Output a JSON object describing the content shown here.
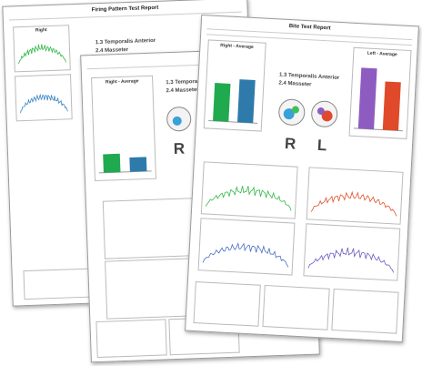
{
  "pages": [
    {
      "title": "Firing Pattern Test Report",
      "panel": "Right",
      "muscles": [
        "1.3 Temporalis Anterior",
        "2.4 Masseter"
      ]
    },
    {
      "chart": {
        "title": "Right - Average",
        "values": [
          22,
          17
        ],
        "colors": [
          "#1faa4f",
          "#2e7bab"
        ],
        "ylim": [
          0,
          100
        ]
      },
      "muscles": [
        "1.3 Temporalis Anterior",
        "2.4 Masseter"
      ],
      "side": "R"
    },
    {
      "title": "Bite Test Report",
      "right_chart": {
        "title": "Right - Average",
        "values": [
          55,
          62
        ],
        "colors": [
          "#1faa4f",
          "#2e7bab"
        ],
        "ylim": [
          0,
          100
        ]
      },
      "left_chart": {
        "title": "Left - Average",
        "values": [
          88,
          70
        ],
        "colors": [
          "#8e5cc0",
          "#e04a2a"
        ],
        "ylim": [
          0,
          100
        ]
      },
      "muscles": [
        "1.3 Temporalis Anterior",
        "2.4 Masseter"
      ],
      "sides": [
        "R",
        "L"
      ]
    }
  ]
}
